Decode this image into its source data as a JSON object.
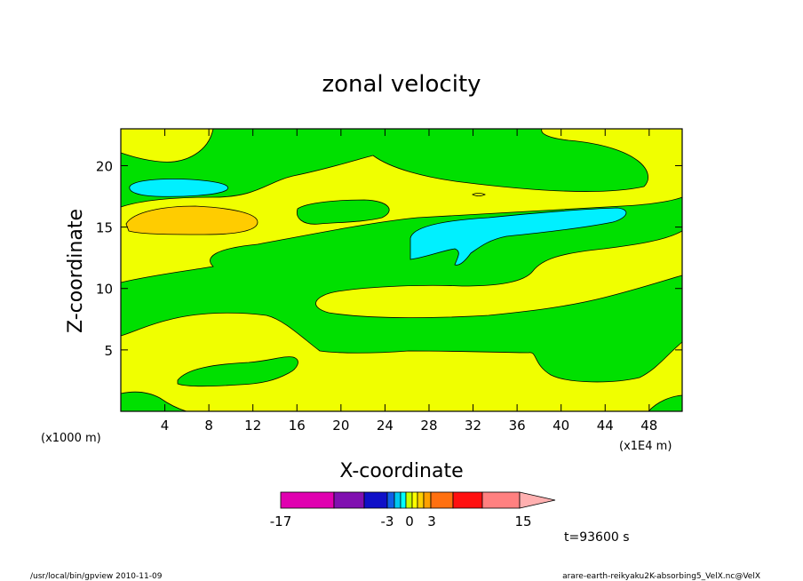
{
  "chart_data": {
    "type": "heatmap",
    "title": "zonal velocity",
    "xlabel": "X-coordinate",
    "ylabel": "Z-coordinate",
    "xunit": "(x1E4 m)",
    "yunit": "(x1000 m)",
    "xlim": [
      0,
      51
    ],
    "ylim": [
      0,
      23
    ],
    "xticks": [
      "4",
      "8",
      "12",
      "16",
      "20",
      "24",
      "28",
      "32",
      "36",
      "40",
      "44",
      "48"
    ],
    "xtick_values": [
      4,
      8,
      12,
      16,
      20,
      24,
      28,
      32,
      36,
      40,
      44,
      48
    ],
    "yticks": [
      "5",
      "10",
      "15",
      "20"
    ],
    "ytick_values": [
      5,
      10,
      15,
      20
    ],
    "time_label": "t=93600 s",
    "colorbar": {
      "tick_labels": [
        "-17",
        "-3",
        "0",
        "3",
        "15"
      ],
      "tick_values": [
        -17,
        -3,
        0,
        3,
        15
      ],
      "colors": [
        "#e000b0",
        "#8010b0",
        "#1010c8",
        "#1060e8",
        "#00c8f0",
        "#00ffff",
        "#c8ff00",
        "#ffff00",
        "#ffd000",
        "#ffa000",
        "#ff7010",
        "#ff1010",
        "#ff8080",
        "#ffb0b0"
      ]
    },
    "level_colors": {
      "negative_small": "#00f0ff",
      "near_zero_negative": "#00e000",
      "near_zero_positive": "#f0ff00",
      "positive": "#ffcc00"
    }
  },
  "footer": {
    "left": "/usr/local/bin/gpview  2010-11-09",
    "right": "arare-earth-reikyaku2K-absorbing5_VelX.nc@VelX"
  }
}
